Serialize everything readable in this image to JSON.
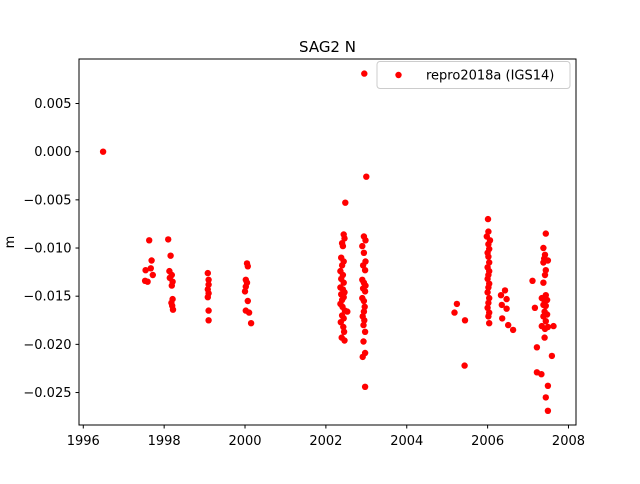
{
  "chart_data": {
    "type": "scatter",
    "title": "SAG2 N",
    "xlabel": "",
    "ylabel": "m",
    "grid": false,
    "background": "#ffffff",
    "axis_color": "#000000",
    "xlim": [
      1995.894,
      2008.186
    ],
    "ylim": [
      -0.02837,
      0.00962
    ],
    "x_ticks": {
      "values": [
        1996,
        1998,
        2000,
        2002,
        2004,
        2006,
        2008
      ],
      "labels": [
        "1996",
        "1998",
        "2000",
        "2002",
        "2004",
        "2006",
        "2008"
      ]
    },
    "y_ticks": {
      "values": [
        0.005,
        0.0,
        -0.005,
        -0.01,
        -0.015,
        -0.02,
        -0.025
      ],
      "labels": [
        "0.005",
        "0.000",
        "−0.005",
        "−0.010",
        "−0.015",
        "−0.020",
        "−0.025"
      ]
    },
    "legend": {
      "position": "upper right",
      "frame_color": "#cccccc",
      "entries": [
        {
          "label": "repro2018a (IGS14)",
          "color": "#ff0000",
          "marker": "circle"
        }
      ]
    },
    "series": [
      {
        "name": "repro2018a (IGS14)",
        "color": "#ff0000",
        "marker": "circle",
        "marker_radius_px": 3.2,
        "points": [
          [
            1996.49,
            0.0
          ],
          [
            1997.63,
            -0.0092
          ],
          [
            1997.69,
            -0.0113
          ],
          [
            1997.54,
            -0.0123
          ],
          [
            1997.67,
            -0.0121
          ],
          [
            1997.72,
            -0.0128
          ],
          [
            1997.53,
            -0.0134
          ],
          [
            1997.59,
            -0.0135
          ],
          [
            1998.1,
            -0.0091
          ],
          [
            1998.16,
            -0.0108
          ],
          [
            1998.13,
            -0.0124
          ],
          [
            1998.19,
            -0.0128
          ],
          [
            1998.14,
            -0.0131
          ],
          [
            1998.21,
            -0.0135
          ],
          [
            1998.19,
            -0.0139
          ],
          [
            1998.21,
            -0.0153
          ],
          [
            1998.18,
            -0.0157
          ],
          [
            1998.2,
            -0.016
          ],
          [
            1998.22,
            -0.0164
          ],
          [
            1999.08,
            -0.0126
          ],
          [
            1999.1,
            -0.0133
          ],
          [
            1999.1,
            -0.0138
          ],
          [
            1999.08,
            -0.0143
          ],
          [
            1999.1,
            -0.0147
          ],
          [
            1999.08,
            -0.0151
          ],
          [
            1999.1,
            -0.0165
          ],
          [
            1999.1,
            -0.0175
          ],
          [
            2000.05,
            -0.0116
          ],
          [
            2000.07,
            -0.0119
          ],
          [
            2000.02,
            -0.0133
          ],
          [
            2000.05,
            -0.0136
          ],
          [
            2000.02,
            -0.014
          ],
          [
            2000.0,
            -0.0145
          ],
          [
            2000.07,
            -0.0155
          ],
          [
            2000.02,
            -0.0165
          ],
          [
            2000.1,
            -0.0167
          ],
          [
            2000.15,
            -0.0178
          ],
          [
            2002.48,
            -0.0053
          ],
          [
            2002.44,
            -0.0086
          ],
          [
            2002.46,
            -0.009
          ],
          [
            2002.4,
            -0.0095
          ],
          [
            2002.42,
            -0.0098
          ],
          [
            2002.38,
            -0.011
          ],
          [
            2002.44,
            -0.0114
          ],
          [
            2002.4,
            -0.0118
          ],
          [
            2002.36,
            -0.0124
          ],
          [
            2002.42,
            -0.0128
          ],
          [
            2002.38,
            -0.0132
          ],
          [
            2002.44,
            -0.0136
          ],
          [
            2002.36,
            -0.0141
          ],
          [
            2002.42,
            -0.0143
          ],
          [
            2002.46,
            -0.0146
          ],
          [
            2002.38,
            -0.0148
          ],
          [
            2002.44,
            -0.0151
          ],
          [
            2002.4,
            -0.0154
          ],
          [
            2002.36,
            -0.0158
          ],
          [
            2002.41,
            -0.0161
          ],
          [
            2002.47,
            -0.0165
          ],
          [
            2002.53,
            -0.0166
          ],
          [
            2002.4,
            -0.017
          ],
          [
            2002.44,
            -0.0173
          ],
          [
            2002.37,
            -0.0177
          ],
          [
            2002.43,
            -0.0182
          ],
          [
            2002.45,
            -0.0187
          ],
          [
            2002.39,
            -0.0193
          ],
          [
            2002.46,
            -0.0196
          ],
          [
            2002.95,
            0.0081
          ],
          [
            2003.0,
            -0.0026
          ],
          [
            2002.94,
            -0.0088
          ],
          [
            2002.98,
            -0.0092
          ],
          [
            2002.9,
            -0.0098
          ],
          [
            2002.94,
            -0.0105
          ],
          [
            2002.98,
            -0.0114
          ],
          [
            2002.92,
            -0.0118
          ],
          [
            2002.97,
            -0.0123
          ],
          [
            2002.9,
            -0.0133
          ],
          [
            2002.94,
            -0.0136
          ],
          [
            2002.98,
            -0.0139
          ],
          [
            2002.92,
            -0.0142
          ],
          [
            2002.97,
            -0.0145
          ],
          [
            2002.9,
            -0.0152
          ],
          [
            2002.94,
            -0.0155
          ],
          [
            2002.96,
            -0.0161
          ],
          [
            2002.94,
            -0.0166
          ],
          [
            2002.91,
            -0.0171
          ],
          [
            2002.95,
            -0.0175
          ],
          [
            2002.93,
            -0.018
          ],
          [
            2002.97,
            -0.0187
          ],
          [
            2002.93,
            -0.0197
          ],
          [
            2002.97,
            -0.0209
          ],
          [
            2002.91,
            -0.0213
          ],
          [
            2002.97,
            -0.0244
          ],
          [
            2005.18,
            -0.0167
          ],
          [
            2005.24,
            -0.0158
          ],
          [
            2005.44,
            -0.0175
          ],
          [
            2005.43,
            -0.0222
          ],
          [
            2006.01,
            -0.007
          ],
          [
            2006.02,
            -0.0083
          ],
          [
            2005.98,
            -0.0088
          ],
          [
            2006.06,
            -0.0092
          ],
          [
            2006.02,
            -0.0096
          ],
          [
            2006.04,
            -0.0101
          ],
          [
            2006.0,
            -0.0105
          ],
          [
            2006.02,
            -0.0109
          ],
          [
            2006.04,
            -0.0115
          ],
          [
            2006.0,
            -0.012
          ],
          [
            2006.04,
            -0.0124
          ],
          [
            2006.02,
            -0.0128
          ],
          [
            2006.0,
            -0.0132
          ],
          [
            2006.04,
            -0.0137
          ],
          [
            2006.02,
            -0.0141
          ],
          [
            2006.0,
            -0.0146
          ],
          [
            2006.04,
            -0.0152
          ],
          [
            2006.02,
            -0.0157
          ],
          [
            2006.0,
            -0.0162
          ],
          [
            2006.04,
            -0.0167
          ],
          [
            2006.02,
            -0.0171
          ],
          [
            2006.04,
            -0.0178
          ],
          [
            2006.43,
            -0.0144
          ],
          [
            2006.33,
            -0.0149
          ],
          [
            2006.47,
            -0.0153
          ],
          [
            2006.35,
            -0.0159
          ],
          [
            2006.47,
            -0.0163
          ],
          [
            2006.36,
            -0.0173
          ],
          [
            2006.51,
            -0.018
          ],
          [
            2006.63,
            -0.0185
          ],
          [
            2007.44,
            -0.0085
          ],
          [
            2007.38,
            -0.01
          ],
          [
            2007.42,
            -0.0107
          ],
          [
            2007.4,
            -0.0111
          ],
          [
            2007.38,
            -0.0115
          ],
          [
            2007.49,
            -0.0113
          ],
          [
            2007.44,
            -0.0123
          ],
          [
            2007.42,
            -0.0128
          ],
          [
            2007.11,
            -0.0134
          ],
          [
            2007.38,
            -0.0136
          ],
          [
            2007.44,
            -0.0149
          ],
          [
            2007.34,
            -0.0152
          ],
          [
            2007.41,
            -0.0155
          ],
          [
            2007.47,
            -0.0154
          ],
          [
            2007.38,
            -0.0159
          ],
          [
            2007.44,
            -0.016
          ],
          [
            2007.17,
            -0.0162
          ],
          [
            2007.41,
            -0.0166
          ],
          [
            2007.47,
            -0.0169
          ],
          [
            2007.38,
            -0.0171
          ],
          [
            2007.44,
            -0.0176
          ],
          [
            2007.34,
            -0.0181
          ],
          [
            2007.42,
            -0.0184
          ],
          [
            2007.49,
            -0.0182
          ],
          [
            2007.63,
            -0.0181
          ],
          [
            2007.41,
            -0.0193
          ],
          [
            2007.22,
            -0.0203
          ],
          [
            2007.59,
            -0.0212
          ],
          [
            2007.22,
            -0.0229
          ],
          [
            2007.33,
            -0.0231
          ],
          [
            2007.49,
            -0.0243
          ],
          [
            2007.44,
            -0.0255
          ],
          [
            2007.49,
            -0.0269
          ]
        ]
      }
    ]
  }
}
